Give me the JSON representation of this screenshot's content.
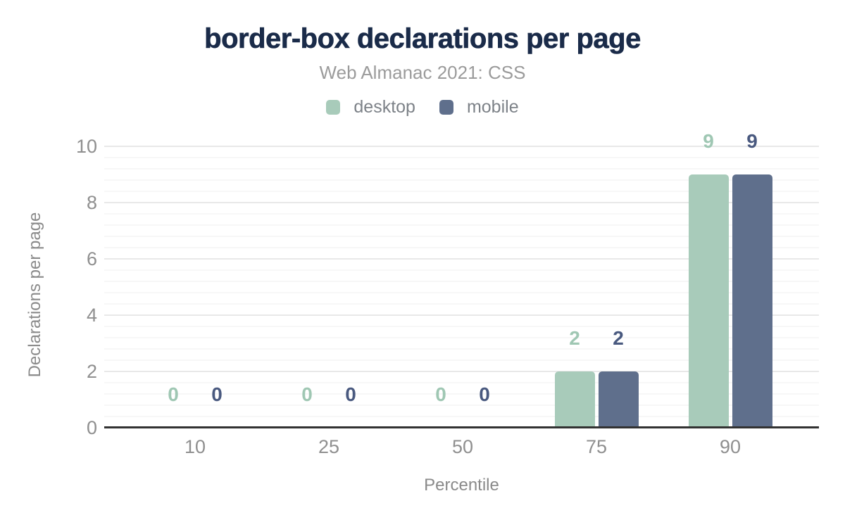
{
  "chart_data": {
    "type": "bar",
    "title": "border-box declarations per page",
    "subtitle": "Web Almanac 2021: CSS",
    "xlabel": "Percentile",
    "ylabel": "Declarations per page",
    "categories": [
      "10",
      "25",
      "50",
      "75",
      "90"
    ],
    "series": [
      {
        "name": "desktop",
        "color": "#a8cbba",
        "label_color": "#9fc7b3",
        "values": [
          0,
          0,
          0,
          2,
          9
        ]
      },
      {
        "name": "mobile",
        "color": "#5f6f8c",
        "label_color": "#49597f",
        "values": [
          0,
          0,
          0,
          2,
          9
        ]
      }
    ],
    "ylim": [
      0,
      10
    ],
    "y_ticks": [
      0,
      2,
      4,
      6,
      8,
      10
    ],
    "grid": true,
    "minor_grid": true,
    "legend_position": "top",
    "colors": {
      "title": "#1a2b49",
      "subtitle": "#9b9b9b",
      "axis_labels": "#8f8f8f",
      "axis_titles": "#8a8a8a",
      "legend_text": "#7d8288",
      "axis_line": "#323232",
      "major_grid": "#e8e8e8",
      "minor_grid": "#f7f7f7"
    }
  }
}
